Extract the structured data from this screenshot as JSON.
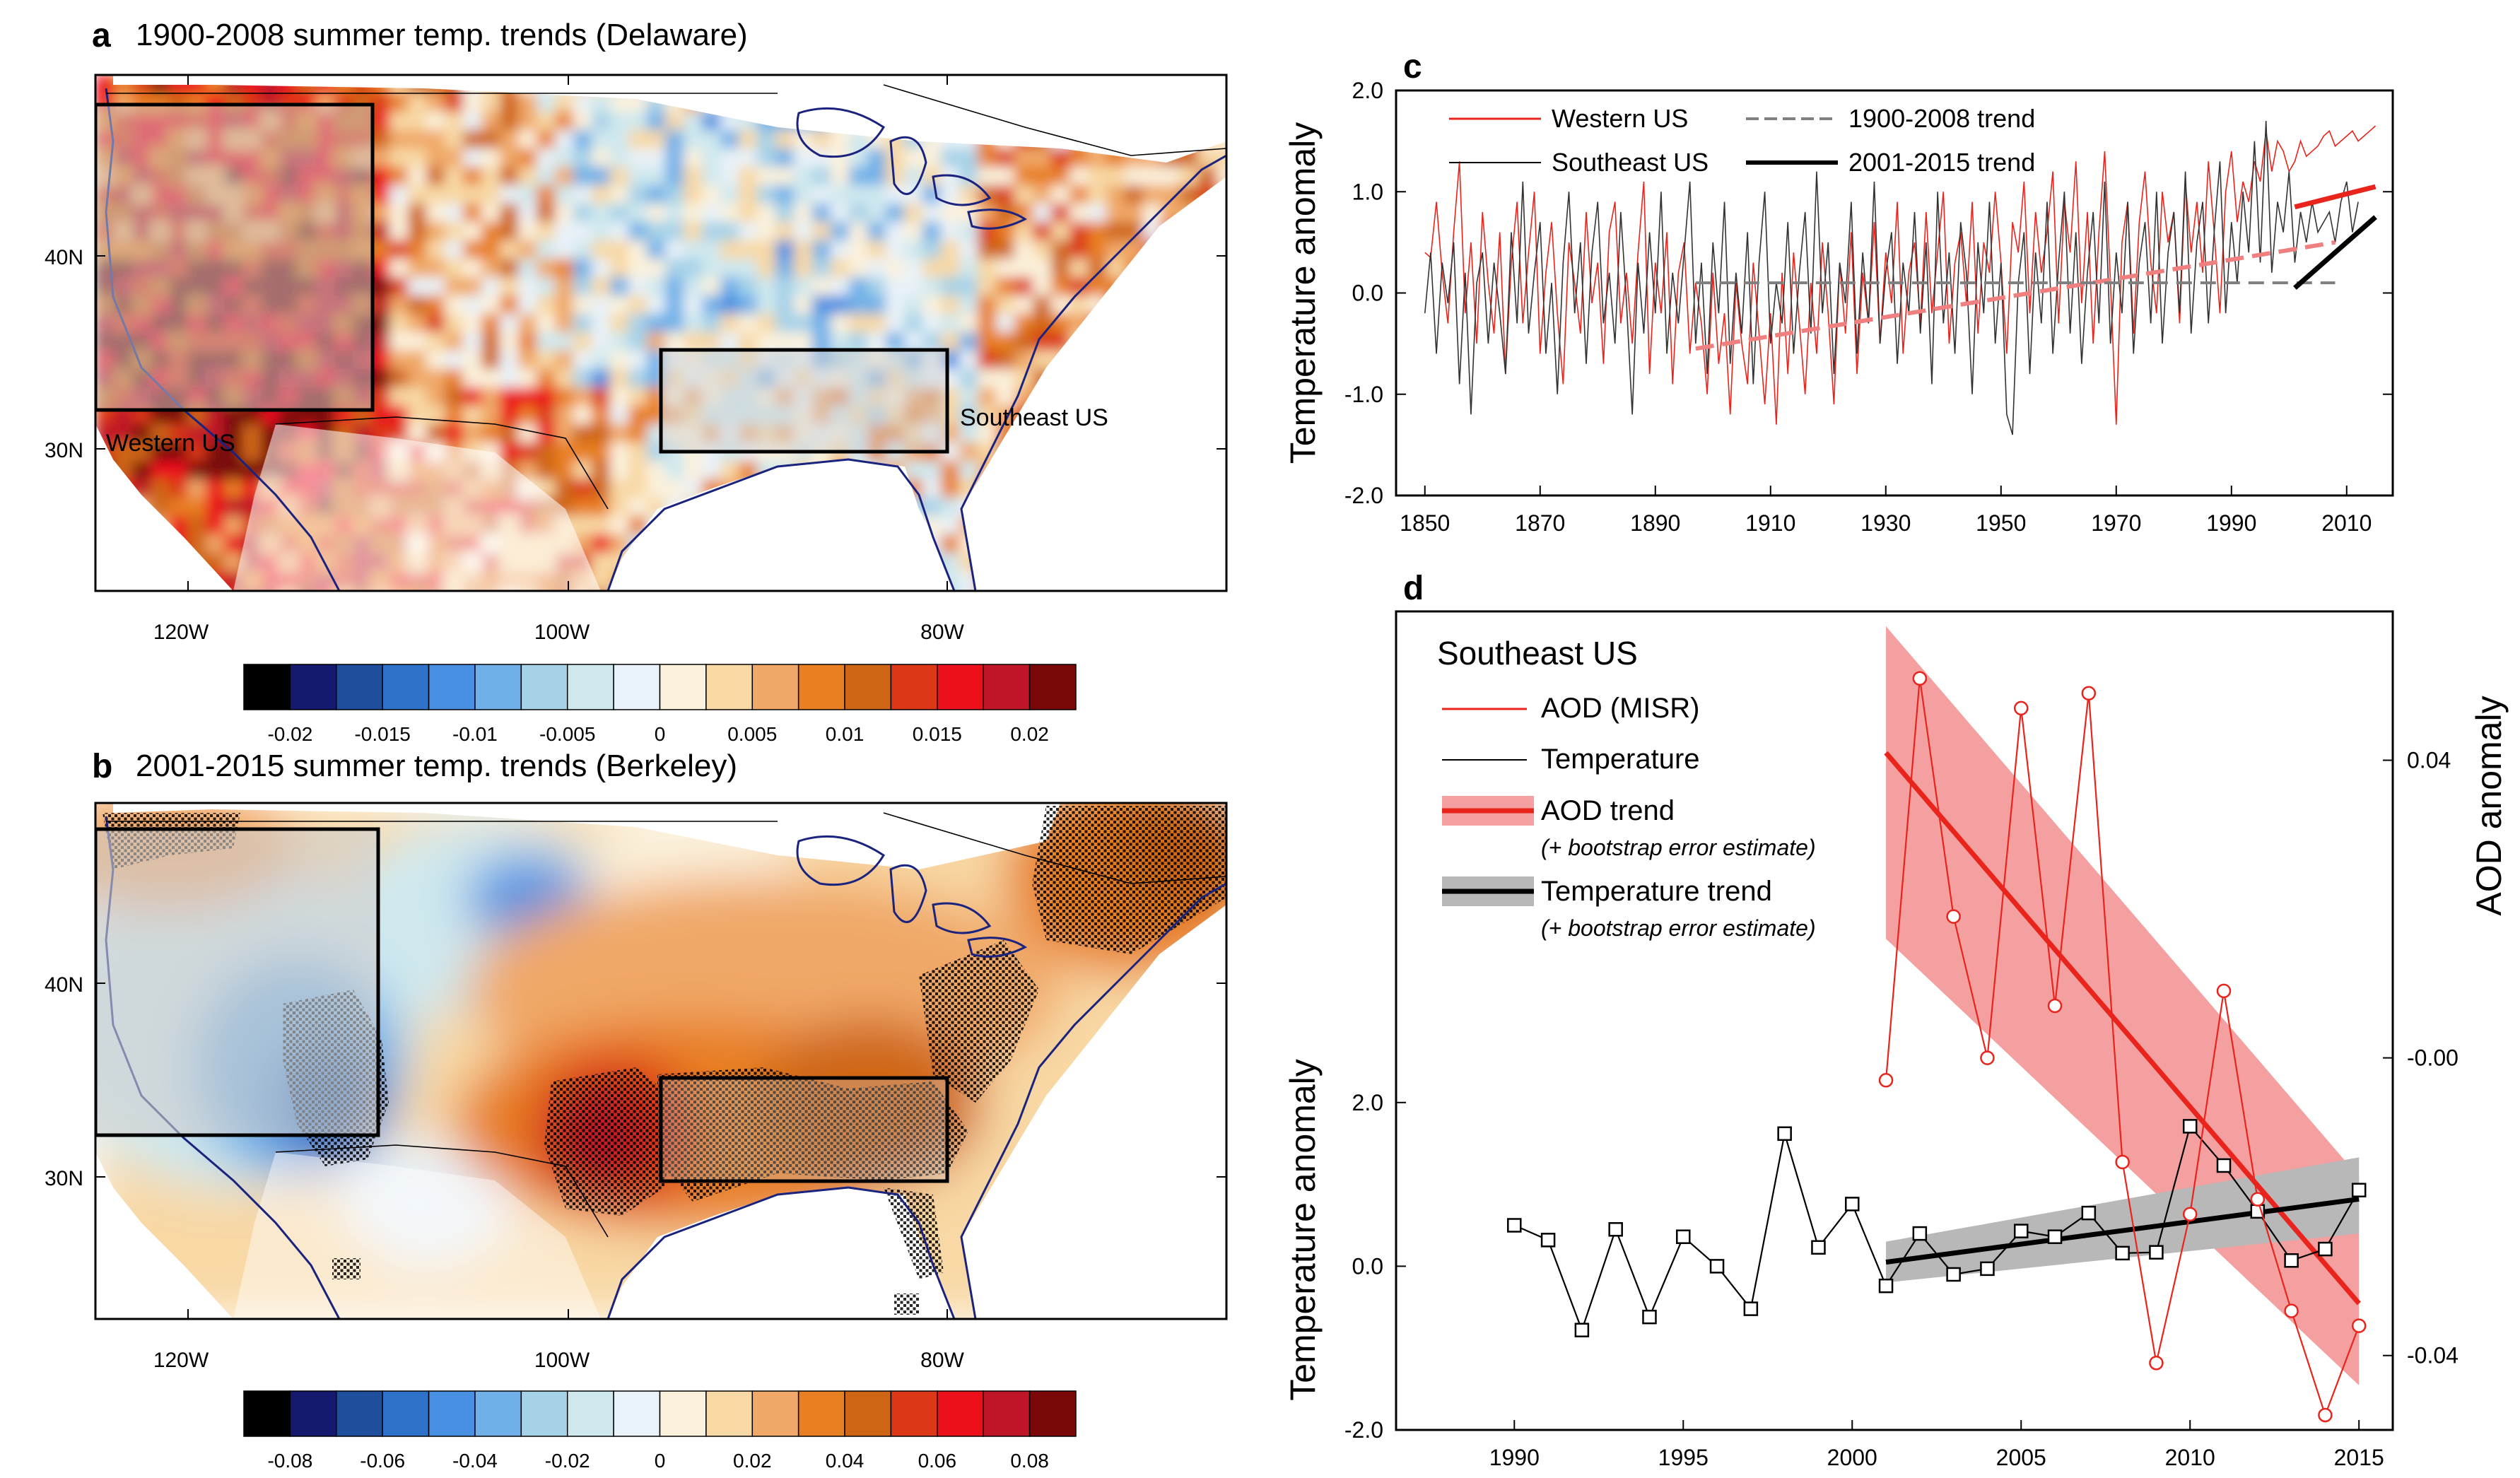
{
  "panels": {
    "a": {
      "letter": "a",
      "title": "1900-2008 summer temp. trends (Delaware)",
      "box_labels": {
        "west": "Western US",
        "southeast": "Southeast US"
      },
      "lat_labels": [
        "40N",
        "30N"
      ],
      "lon_labels": [
        "120W",
        "100W",
        "80W"
      ],
      "colorbar_labels": [
        "-0.02",
        "-0.015",
        "-0.01",
        "-0.005",
        "0",
        "0.005",
        "0.01",
        "0.015",
        "0.02"
      ]
    },
    "b": {
      "letter": "b",
      "title": "2001-2015 summer temp. trends (Berkeley)",
      "lat_labels": [
        "40N",
        "30N"
      ],
      "lon_labels": [
        "120W",
        "100W",
        "80W"
      ],
      "colorbar_labels": [
        "-0.08",
        "-0.06",
        "-0.04",
        "-0.02",
        "0",
        "0.02",
        "0.04",
        "0.06",
        "0.08"
      ]
    },
    "c": {
      "letter": "c"
    },
    "d": {
      "letter": "d"
    }
  },
  "colors": {
    "palette": [
      "#000000",
      "#151a6e",
      "#1f4f9c",
      "#2e72c9",
      "#4a90e2",
      "#6fb0e8",
      "#a6d2e8",
      "#cfe8ee",
      "#e9f2f8",
      "#fbf1dc",
      "#f8d8a4",
      "#f0a868",
      "#e87f22",
      "#cf6616",
      "#dc3818",
      "#ec101a",
      "#c01428",
      "#7a0808"
    ],
    "western_red": "#e8241c",
    "trend_pink": "#f08080",
    "trend_gray": "#7f7f7f",
    "coast": "#1a237e",
    "aod_band": "#f4a0a0",
    "temp_band": "#b8b8b8"
  },
  "chart_data": [
    {
      "id": "c",
      "type": "line",
      "ylabel": "Temperature anomaly",
      "xlim": [
        1845,
        2018
      ],
      "ylim": [
        -2.0,
        2.0
      ],
      "xticks": [
        1850,
        1870,
        1890,
        1910,
        1930,
        1950,
        1970,
        1990,
        2010
      ],
      "yticks": [
        -2.0,
        -1.0,
        0.0,
        1.0,
        2.0
      ],
      "ytick_labels": [
        "-2.0",
        "-1.0",
        "0.0",
        "1.0",
        "2.0"
      ],
      "legend": [
        {
          "label": "Western US",
          "style": "red-thin"
        },
        {
          "label": "1900-2008 trend",
          "style": "gray-dashed"
        },
        {
          "label": "Southeast US",
          "style": "black-thin"
        },
        {
          "label": "2001-2015 trend",
          "style": "black-thick"
        }
      ],
      "series": [
        {
          "name": "Western US",
          "x0": 1850,
          "values": [
            0.4,
            0.35,
            0.9,
            0.2,
            -0.3,
            0.6,
            1.3,
            -0.2,
            0.5,
            -0.5,
            0.8,
            0.1,
            -0.4,
            0.6,
            -0.8,
            0.3,
            0.9,
            -0.3,
            0.4,
            1.0,
            -0.6,
            0.2,
            0.7,
            -0.2,
            -0.9,
            0.5,
            0.1,
            -0.4,
            0.8,
            -0.1,
            0.3,
            -0.7,
            0.6,
            0.9,
            -0.3,
            0.2,
            -0.5,
            0.4,
            1.1,
            -0.8,
            0.3,
            -0.2,
            0.6,
            -0.9,
            0.2,
            0.5,
            -0.6,
            0.1,
            -0.3,
            -1.0,
            0.2,
            -0.7,
            -0.2,
            -1.2,
            0.1,
            -0.5,
            -0.9,
            0.3,
            -0.4,
            -1.1,
            -0.2,
            -1.3,
            0.2,
            -0.8,
            0.4,
            -0.3,
            -1.0,
            0.1,
            -0.6,
            0.5,
            -0.2,
            -1.1,
            0.3,
            -0.4,
            0.6,
            -0.8,
            0.2,
            -0.3,
            0.7,
            -0.5,
            0.4,
            -0.1,
            0.9,
            -0.6,
            0.2,
            0.5,
            -0.3,
            0.8,
            -0.2,
            0.4,
            1.0,
            -0.5,
            0.3,
            0.6,
            -0.1,
            0.9,
            -0.4,
            0.5,
            0.2,
            1.0,
            0.3,
            -0.6,
            0.7,
            0.4,
            1.1,
            -0.2,
            0.8,
            0.2,
            0.6,
            1.2,
            -0.3,
            0.9,
            0.4,
            1.3,
            -0.1,
            0.8,
            -0.5,
            0.6,
            1.4,
            0.1,
            -1.3,
            0.5,
            0.9,
            -0.4,
            0.7,
            1.2,
            0.3,
            -0.2,
            1.0,
            0.5,
            0.8,
            -0.3,
            1.1,
            0.4,
            0.9,
            0.2,
            1.3,
            0.6,
            -0.2,
            1.0,
            1.4,
            0.7,
            1.1,
            0.9,
            1.3,
            1.1,
            1.6,
            1.2,
            1.5,
            1.4,
            1.2,
            1.3,
            1.5,
            1.35,
            1.4,
            1.45,
            1.55,
            1.6,
            1.45,
            1.5,
            1.55,
            1.6,
            1.5,
            1.55,
            1.6,
            1.65
          ]
        },
        {
          "name": "Southeast US",
          "x0": 1850,
          "values": [
            -0.2,
            0.4,
            -0.6,
            0.3,
            -0.1,
            0.5,
            -0.9,
            0.2,
            -1.2,
            0.1,
            0.4,
            -0.5,
            0.3,
            -0.2,
            -0.8,
            0.6,
            -0.3,
            1.1,
            -0.4,
            0.2,
            0.7,
            -0.6,
            0.1,
            -1.0,
            0.3,
            1.0,
            -0.2,
            0.5,
            -0.7,
            0.4,
            0.9,
            -0.3,
            0.2,
            -0.5,
            0.8,
            -0.1,
            -1.2,
            0.3,
            -0.4,
            0.6,
            -0.2,
            1.0,
            -0.6,
            0.2,
            -0.3,
            0.4,
            1.1,
            -0.5,
            0.3,
            -0.8,
            0.5,
            -0.2,
            0.9,
            -0.7,
            0.2,
            -0.4,
            0.6,
            -0.9,
            0.3,
            1.0,
            -0.5,
            0.1,
            -0.3,
            0.7,
            -0.6,
            0.2,
            0.8,
            -0.4,
            1.2,
            -0.2,
            0.5,
            -0.8,
            0.3,
            -0.1,
            0.9,
            -0.6,
            0.4,
            -0.3,
            1.1,
            -0.5,
            0.2,
            0.6,
            -0.7,
            0.3,
            -0.2,
            0.8,
            -0.4,
            0.5,
            -0.9,
            1.0,
            -0.3,
            0.4,
            -0.6,
            0.7,
            0.2,
            -1.0,
            0.5,
            -0.2,
            0.9,
            -0.5,
            0.3,
            -1.2,
            -1.4,
            0.1,
            0.6,
            -0.8,
            0.4,
            -0.3,
            0.9,
            -0.6,
            0.3,
            1.0,
            -0.4,
            0.6,
            -0.7,
            0.2,
            0.8,
            -0.3,
            1.1,
            -0.5,
            0.4,
            -0.2,
            0.9,
            -0.6,
            0.3,
            0.7,
            -0.3,
            1.0,
            -0.5,
            0.4,
            0.8,
            -0.2,
            1.2,
            -0.4,
            0.5,
            0.9,
            -0.3,
            0.6,
            1.3,
            -0.2,
            0.7,
            0.1,
            1.0,
            0.4,
            1.5,
            0.3,
            1.7,
            0.2,
            0.9,
            0.6,
            1.2,
            0.3,
            0.8,
            0.5,
            0.9,
            0.6,
            0.7,
            0.8,
            0.5,
            0.9,
            1.1,
            0.6,
            0.9
          ]
        },
        {
          "name": "1900-2008 trend (Western US)",
          "style": "pink-dashed",
          "x": [
            1897,
            2008
          ],
          "y": [
            -0.55,
            0.5
          ]
        },
        {
          "name": "1900-2008 trend (Southeast US)",
          "style": "gray-dashed",
          "x": [
            1897,
            2008
          ],
          "y": [
            0.1,
            0.1
          ]
        },
        {
          "name": "2001-2015 trend (Western US)",
          "style": "red-thick",
          "x": [
            2001,
            2015
          ],
          "y": [
            0.85,
            1.05
          ]
        },
        {
          "name": "2001-2015 trend (Southeast US)",
          "style": "black-thick",
          "x": [
            2001,
            2015
          ],
          "y": [
            0.05,
            0.75
          ]
        }
      ]
    },
    {
      "id": "d",
      "type": "line",
      "title": "Southeast US",
      "xlim": [
        1986.5,
        2016
      ],
      "xticks": [
        1990,
        1995,
        2000,
        2005,
        2010,
        2015
      ],
      "ylabel_left": "Temperature anomaly",
      "ylim_left": [
        -2.0,
        8.0
      ],
      "yticks_left": [
        -2.0,
        0.0,
        2.0
      ],
      "ytick_labels_left": [
        "-2.0",
        "0.0",
        "2.0"
      ],
      "ylabel_right": "AOD anomaly",
      "ylim_right": [
        -0.05,
        0.06
      ],
      "yticks_right": [
        -0.04,
        0.0,
        0.04
      ],
      "ytick_labels_right": [
        "-0.04",
        "-0.00",
        "0.04"
      ],
      "legend": [
        {
          "label": "AOD (MISR)",
          "style": "red-thin"
        },
        {
          "label": "Temperature",
          "style": "black-thin"
        },
        {
          "label": "AOD trend",
          "note": "(+ bootstrap error estimate)",
          "style": "red-band"
        },
        {
          "label": "Temperature trend",
          "note": "(+ bootstrap error estimate)",
          "style": "gray-band"
        }
      ],
      "series": [
        {
          "name": "Temperature",
          "axis": "left",
          "marker": "square",
          "x": [
            1990,
            1991,
            1992,
            1993,
            1994,
            1995,
            1996,
            1997,
            1998,
            1999,
            2000,
            2001,
            2002,
            2003,
            2004,
            2005,
            2006,
            2007,
            2008,
            2009,
            2010,
            2011,
            2012,
            2013,
            2014,
            2015
          ],
          "values": [
            0.5,
            0.32,
            -0.78,
            0.45,
            -0.62,
            0.36,
            0.0,
            -0.52,
            1.62,
            0.23,
            0.76,
            -0.24,
            0.4,
            -0.1,
            -0.03,
            0.43,
            0.36,
            0.65,
            0.16,
            0.17,
            1.71,
            1.23,
            0.67,
            0.07,
            0.21,
            0.93
          ]
        },
        {
          "name": "AOD (MISR)",
          "axis": "right",
          "marker": "circle",
          "x": [
            2001,
            2002,
            2003,
            2004,
            2005,
            2006,
            2007,
            2008,
            2009,
            2010,
            2011,
            2012,
            2013,
            2014,
            2015
          ],
          "values": [
            -0.003,
            0.051,
            0.019,
            0.0,
            0.047,
            0.007,
            0.049,
            -0.014,
            -0.041,
            -0.021,
            0.009,
            -0.019,
            -0.034,
            -0.048,
            -0.036
          ]
        },
        {
          "name": "AOD trend",
          "axis": "right",
          "x": [
            2001,
            2015
          ],
          "y": [
            0.041,
            -0.033
          ],
          "band_upper": [
            0.058,
            -0.016
          ],
          "band_lower": [
            0.016,
            -0.044
          ]
        },
        {
          "name": "Temperature trend",
          "axis": "left",
          "x": [
            2001,
            2015
          ],
          "y": [
            0.05,
            0.82
          ],
          "band_upper": [
            0.3,
            1.33
          ],
          "band_lower": [
            -0.2,
            0.4
          ]
        }
      ]
    }
  ]
}
